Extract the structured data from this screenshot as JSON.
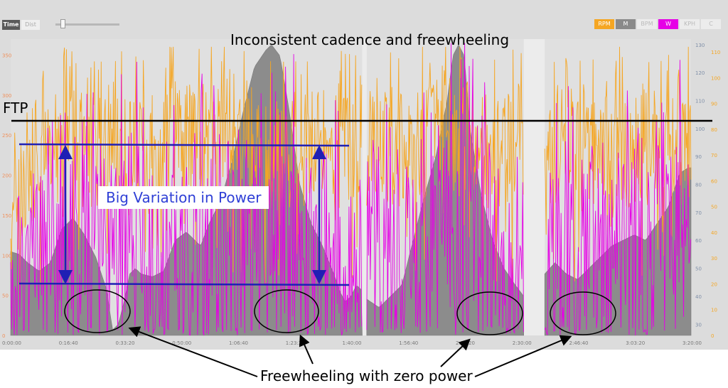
{
  "toolbar": {
    "time_label": "Time",
    "dist_label": "Dist",
    "unit_buttons": [
      {
        "label": "RPM",
        "active": true,
        "color": "#f5a623"
      },
      {
        "label": "M",
        "active": true,
        "color": "#8a8a8a"
      },
      {
        "label": "BPM",
        "active": false,
        "color": "#ececec"
      },
      {
        "label": "W",
        "active": true,
        "color": "#e600e6"
      },
      {
        "label": "KPH",
        "active": false,
        "color": "#ececec"
      },
      {
        "label": "C",
        "active": false,
        "color": "#ececec"
      }
    ]
  },
  "chart_data": {
    "type": "line",
    "title": "Inconsistent cadence and freewheeling",
    "x_ticks": [
      "0:00:00",
      "0:16:40",
      "0:33:20",
      "0:50:00",
      "1:06:40",
      "1:23:20",
      "1:40:00",
      "1:56:40",
      "2:13:20",
      "2:30:00",
      "2:46:40",
      "3:03:20",
      "3:20:00"
    ],
    "x_range_seconds": [
      0,
      12000
    ],
    "left_axis": {
      "ticks": [
        0,
        50,
        100,
        150,
        200,
        250,
        300,
        350
      ],
      "range": [
        0,
        370
      ]
    },
    "right_axis_elevation": {
      "ticks": [
        30,
        40,
        50,
        60,
        70,
        80,
        90,
        100,
        110,
        120,
        130
      ],
      "range": [
        26,
        132
      ]
    },
    "right_axis_cadence": {
      "ticks": [
        0,
        10,
        20,
        30,
        40,
        50,
        60,
        70,
        80,
        90,
        100,
        110
      ],
      "range": [
        0,
        115
      ]
    },
    "gaps_seconds": [
      [
        6200,
        6280
      ],
      [
        9050,
        9420
      ]
    ],
    "series": [
      {
        "name": "RPM",
        "color": "#f5a623",
        "envelope_t": [
          0,
          200,
          600,
          1000,
          1500,
          2000,
          2500,
          3000,
          3500,
          4000,
          4500,
          5000,
          5500,
          6000,
          6200,
          6300,
          6600,
          7000,
          7500,
          8000,
          8500,
          9000,
          9420,
          9800,
          10200,
          10600,
          11000,
          11400,
          11800,
          12000
        ],
        "envelope_v": [
          60,
          70,
          85,
          92,
          88,
          90,
          85,
          95,
          92,
          102,
          85,
          90,
          92,
          88,
          85,
          90,
          92,
          88,
          95,
          100,
          85,
          95,
          88,
          92,
          85,
          95,
          88,
          92,
          100,
          95
        ]
      },
      {
        "name": "W",
        "color": "#e600e6",
        "envelope_t": [
          0,
          500,
          1000,
          2000,
          3000,
          4000,
          5000,
          6000,
          7000,
          8000,
          9000,
          10000,
          11000,
          12000
        ],
        "envelope_v": [
          150,
          180,
          200,
          210,
          230,
          240,
          220,
          200,
          230,
          250,
          200,
          210,
          230,
          220
        ]
      },
      {
        "name": "M",
        "color": "#8a8a8a",
        "profile_t": [
          0,
          150,
          300,
          500,
          700,
          900,
          1100,
          1300,
          1500,
          1700,
          1750,
          1800,
          1900,
          2000,
          2100,
          2200,
          2300,
          2500,
          2700,
          2900,
          3100,
          3200,
          3350,
          3500,
          3700,
          3900,
          4100,
          4300,
          4500,
          4600,
          4750,
          4900,
          5100,
          5300,
          5500,
          5700,
          5800,
          5900,
          6000,
          6100,
          6200,
          6280,
          6350,
          6500,
          6700,
          6900,
          7100,
          7300,
          7500,
          7700,
          7800,
          7900,
          8000,
          8100,
          8300,
          8500,
          8700,
          8900,
          9050,
          9420,
          9600,
          9800,
          10000,
          10200,
          10400,
          10600,
          10800,
          11000,
          11200,
          11400,
          11600,
          11800,
          11950,
          12000
        ],
        "profile_v": [
          56,
          55,
          52,
          49,
          52,
          64,
          68,
          62,
          54,
          42,
          34,
          28,
          30,
          38,
          48,
          50,
          48,
          47,
          49,
          60,
          63,
          61,
          58,
          66,
          74,
          88,
          106,
          122,
          128,
          130,
          126,
          108,
          80,
          66,
          58,
          48,
          42,
          38,
          40,
          44,
          42,
          39,
          38,
          36,
          40,
          44,
          60,
          76,
          90,
          110,
          126,
          130,
          126,
          100,
          76,
          60,
          50,
          44,
          40,
          48,
          52,
          48,
          46,
          50,
          54,
          58,
          60,
          62,
          60,
          66,
          72,
          84,
          86,
          86
        ]
      }
    ]
  },
  "annotations": {
    "ftp_label": "FTP",
    "variation_label": "Big Variation in Power",
    "freewheel_label": "Freewheeling with zero power"
  }
}
